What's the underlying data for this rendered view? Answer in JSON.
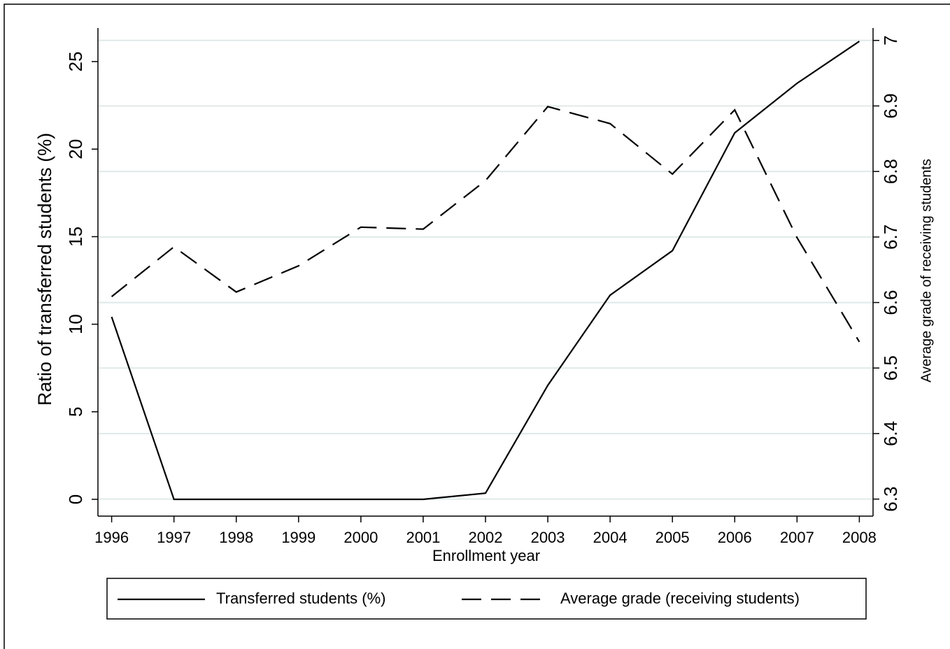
{
  "chart_data": {
    "type": "line",
    "x_label": "Enrollment year",
    "y_label": "Ratio of transferred students (%)",
    "y2_label": "Average grade of receiving students",
    "x": [
      1996,
      1997,
      1998,
      1999,
      2000,
      2001,
      2002,
      2003,
      2004,
      2005,
      2006,
      2007,
      2008
    ],
    "xlim": [
      1995.78,
      2008.22
    ],
    "xticks": [
      1996,
      1997,
      1998,
      1999,
      2000,
      2001,
      2002,
      2003,
      2004,
      2005,
      2006,
      2007,
      2008
    ],
    "ylim": [
      -0.96,
      26.92
    ],
    "yticks": [
      0,
      5,
      10,
      15,
      20,
      25
    ],
    "y2lim": [
      6.274,
      7.019
    ],
    "y2ticks": [
      6.3,
      6.4,
      6.5,
      6.6,
      6.7,
      6.8,
      6.9,
      7
    ],
    "grid": true,
    "series": [
      {
        "name": "Transferred students (%)",
        "color": "#000000",
        "dash": "solid",
        "values": [
          10.42,
          0,
          0,
          0,
          0,
          0,
          0.35,
          6.51,
          11.66,
          14.2,
          20.93,
          23.76,
          26.16
        ]
      },
      {
        "name": "Average grade (receiving students)",
        "color": "#000000",
        "dash": "dashed",
        "axis": "y2",
        "values": [
          6.609,
          6.685,
          6.616,
          6.656,
          6.715,
          6.712,
          6.786,
          6.899,
          6.873,
          6.796,
          6.894,
          6.699,
          6.54
        ]
      }
    ]
  }
}
